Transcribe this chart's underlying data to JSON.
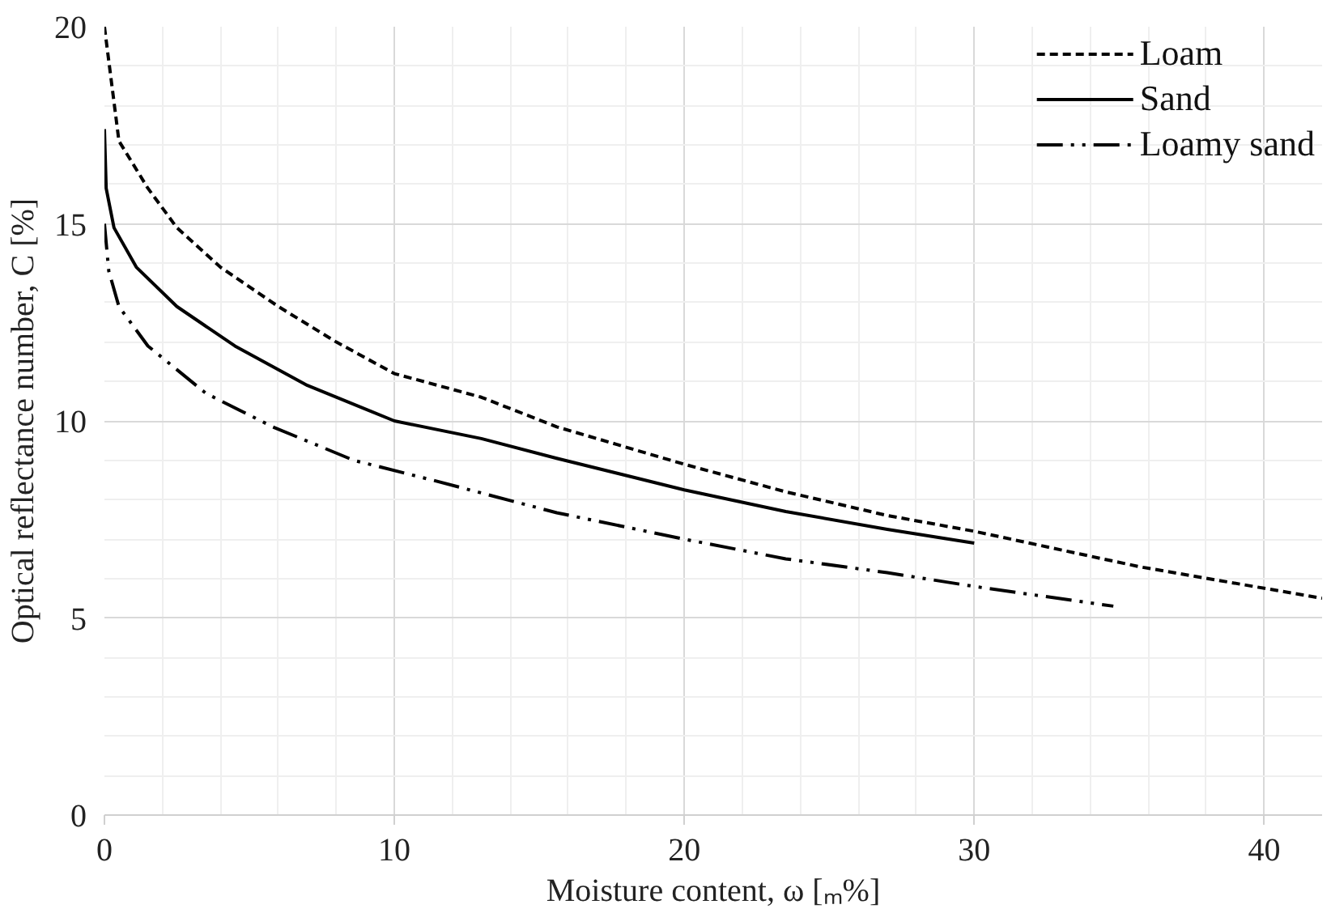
{
  "chart_data": {
    "type": "line",
    "xlabel": "Moisture content, ω [ₘ%]",
    "ylabel": "Optical reflectance number, C [%]",
    "xlim": [
      0,
      42
    ],
    "xticks": [
      0,
      10,
      20,
      30,
      40
    ],
    "ylim": [
      0,
      20
    ],
    "yticks": [
      0,
      5,
      10,
      15,
      20
    ],
    "grid": true,
    "legend": "top right",
    "series": [
      {
        "name": "Loam",
        "color": "#000000",
        "line_style": "dashed",
        "x": [
          0,
          0.5,
          1.5,
          2.5,
          4,
          6,
          8,
          10,
          13,
          15.6,
          20,
          23.5,
          27,
          30,
          35.7,
          42
        ],
        "values": [
          20,
          17.1,
          15.9,
          14.9,
          13.9,
          12.9,
          12.0,
          11.2,
          10.6,
          9.85,
          8.9,
          8.2,
          7.6,
          7.2,
          6.3,
          5.5
        ]
      },
      {
        "name": "Sand",
        "color": "#000000",
        "line_style": "solid",
        "x": [
          0,
          0.06,
          0.33,
          1.1,
          2.5,
          4.5,
          7,
          10,
          13,
          15.6,
          20,
          23.5,
          27,
          30
        ],
        "values": [
          17.4,
          15.9,
          14.9,
          13.9,
          12.9,
          11.9,
          10.9,
          10.0,
          9.55,
          9.05,
          8.25,
          7.7,
          7.25,
          6.9
        ]
      },
      {
        "name": "Loamy sand",
        "color": "#000000",
        "line_style": "dashdotdot",
        "x": [
          0,
          0.15,
          0.5,
          1.5,
          3.5,
          5.8,
          8.6,
          11.3,
          15.6,
          20,
          23.5,
          27,
          30,
          34.8
        ],
        "values": [
          15.0,
          13.8,
          12.9,
          11.9,
          10.7,
          9.85,
          9.0,
          8.5,
          7.67,
          7.0,
          6.5,
          6.15,
          5.8,
          5.3
        ]
      }
    ]
  }
}
